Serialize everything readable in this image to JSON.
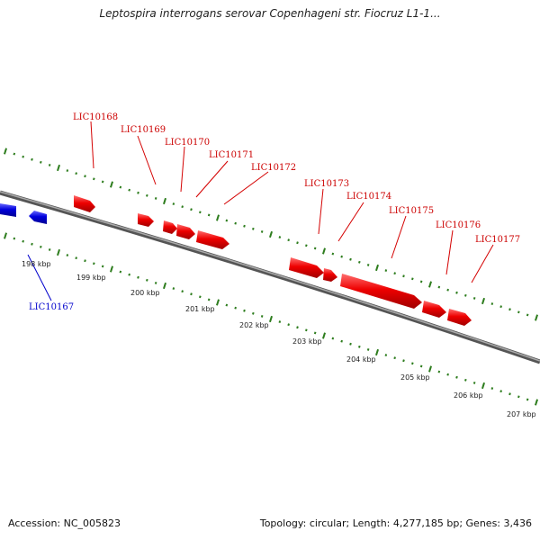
{
  "title": "Leptospira interrogans serovar Copenhageni str. Fiocruz L1-1...",
  "footer": {
    "accession": "Accession: NC_005823",
    "topology": "Topology: circular; Length: 4,277,185 bp; Genes: 3,436"
  },
  "colors": {
    "forward_gene": "#ee0000",
    "reverse_gene": "#0000dd",
    "backbone": "#777777",
    "ticks": "#2e7d1e"
  },
  "scale_labels": [
    "198 kbp",
    "199 kbp",
    "200 kbp",
    "201 kbp",
    "202 kbp",
    "203 kbp",
    "204 kbp",
    "205 kbp",
    "206 kbp",
    "207 kbp"
  ],
  "genes_forward": [
    {
      "label": "LIC10168"
    },
    {
      "label": "LIC10169"
    },
    {
      "label": "LIC10170"
    },
    {
      "label": "LIC10171"
    },
    {
      "label": "LIC10172"
    },
    {
      "label": "LIC10173"
    },
    {
      "label": "LIC10174"
    },
    {
      "label": "LIC10175"
    },
    {
      "label": "LIC10176"
    },
    {
      "label": "LIC10177"
    }
  ],
  "genes_reverse": [
    {
      "label": "LIC10167"
    }
  ]
}
